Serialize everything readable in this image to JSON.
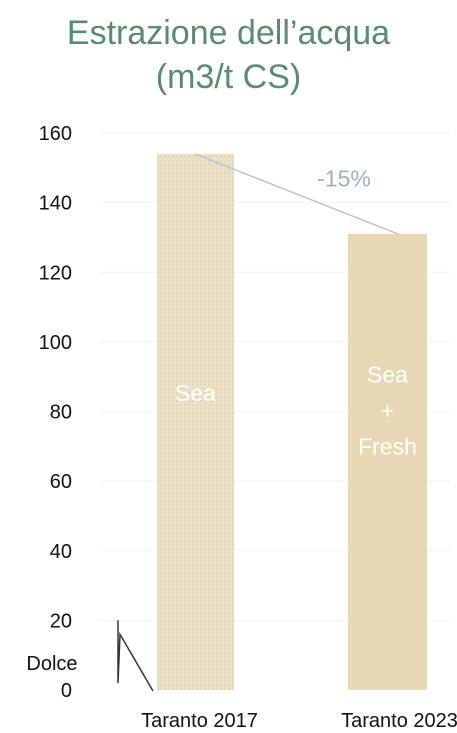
{
  "chart_data": {
    "type": "bar",
    "title": [
      "Estrazione dell’acqua",
      "(m3/t CS)"
    ],
    "categories": [
      "Taranto 2017",
      "Taranto 2023"
    ],
    "values": [
      154,
      131
    ],
    "bar_labels": [
      [
        "Sea"
      ],
      [
        "Sea",
        "+",
        "Fresh"
      ]
    ],
    "ylim": [
      0,
      160
    ],
    "yticks": [
      0,
      20,
      40,
      60,
      80,
      100,
      120,
      140,
      160
    ],
    "grid": true,
    "annotation": {
      "text": "-15%"
    },
    "marker": {
      "label": "Dolce",
      "from": 20,
      "to": 2
    },
    "colors": {
      "title": "#5b8a72",
      "bar_2017": "#ece1c6",
      "bar_2023": "#e6d7b5",
      "bar_label": "#ffffff",
      "annotation": "#9fb0ba",
      "axis_text": "#111111",
      "grid": "#f1f1f1"
    }
  }
}
